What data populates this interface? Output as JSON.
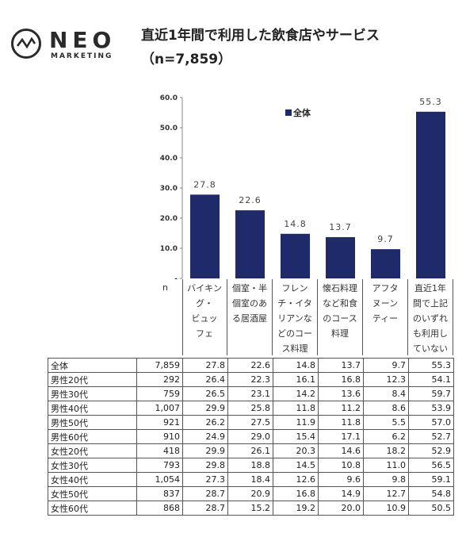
{
  "logo": {
    "word": "NEO",
    "sub": "MARKETING"
  },
  "header": {
    "title": "直近1年間で利用した飲食店やサービス",
    "subtitle": "（n=7,859）"
  },
  "chart_data": {
    "type": "bar",
    "title": "直近1年間で利用した飲食店やサービス",
    "ylim": [
      0,
      60
    ],
    "yticks": [
      "60.0",
      "50.0",
      "40.0",
      "30.0",
      "20.0",
      "10.0",
      "-"
    ],
    "legend": {
      "label": "全体",
      "position": "top-right"
    },
    "categories": [
      "バイキング・ビュッフェ",
      "個室・半個室のある居酒屋",
      "フレンチ・イタリアンなどのコース料理",
      "懐石料理など和食のコース料理",
      "アフタヌーンティー",
      "直近1年間で上記のいずれも利用していない"
    ],
    "category_display": [
      "バイキン\nグ・\nビュッ\nフェ",
      "個室・半\n個室のあ\nる居酒屋",
      "フレン\nチ・イタ\nリアンな\nどのコー\nス料理",
      "懐石料理\nなど和食\nのコース\n料理",
      "アフタ\nヌーン\nティー",
      "直近1年\n間で上記\nのいずれ\nも利用し\nていない"
    ],
    "values": [
      27.8,
      22.6,
      14.8,
      13.7,
      9.7,
      55.3
    ],
    "value_labels": [
      "27.8",
      "22.6",
      "14.8",
      "13.7",
      "9.7",
      "55.3"
    ],
    "bar_color": "#1f2a6b"
  },
  "table": {
    "n_header": "n",
    "rows": [
      {
        "label": "全体",
        "n": "7,859",
        "v": [
          "27.8",
          "22.6",
          "14.8",
          "13.7",
          "9.7",
          "55.3"
        ]
      },
      {
        "label": "男性20代",
        "n": "292",
        "v": [
          "26.4",
          "22.3",
          "16.1",
          "16.8",
          "12.3",
          "54.1"
        ]
      },
      {
        "label": "男性30代",
        "n": "759",
        "v": [
          "26.5",
          "23.1",
          "14.2",
          "13.6",
          "8.4",
          "59.7"
        ]
      },
      {
        "label": "男性40代",
        "n": "1,007",
        "v": [
          "29.9",
          "25.8",
          "11.8",
          "11.2",
          "8.6",
          "53.9"
        ]
      },
      {
        "label": "男性50代",
        "n": "921",
        "v": [
          "26.2",
          "27.5",
          "11.9",
          "11.8",
          "5.5",
          "57.0"
        ]
      },
      {
        "label": "男性60代",
        "n": "910",
        "v": [
          "24.9",
          "29.0",
          "15.4",
          "17.1",
          "6.2",
          "52.7"
        ]
      },
      {
        "label": "女性20代",
        "n": "418",
        "v": [
          "29.9",
          "26.1",
          "20.3",
          "14.6",
          "18.2",
          "52.9"
        ]
      },
      {
        "label": "女性30代",
        "n": "793",
        "v": [
          "29.8",
          "18.8",
          "14.5",
          "10.8",
          "11.0",
          "56.5"
        ]
      },
      {
        "label": "女性40代",
        "n": "1,054",
        "v": [
          "27.3",
          "18.4",
          "12.6",
          "9.6",
          "9.8",
          "59.1"
        ]
      },
      {
        "label": "女性50代",
        "n": "837",
        "v": [
          "28.7",
          "20.9",
          "16.8",
          "14.9",
          "12.7",
          "54.8"
        ]
      },
      {
        "label": "女性60代",
        "n": "868",
        "v": [
          "28.7",
          "15.2",
          "19.2",
          "20.0",
          "10.9",
          "50.5"
        ]
      }
    ]
  }
}
